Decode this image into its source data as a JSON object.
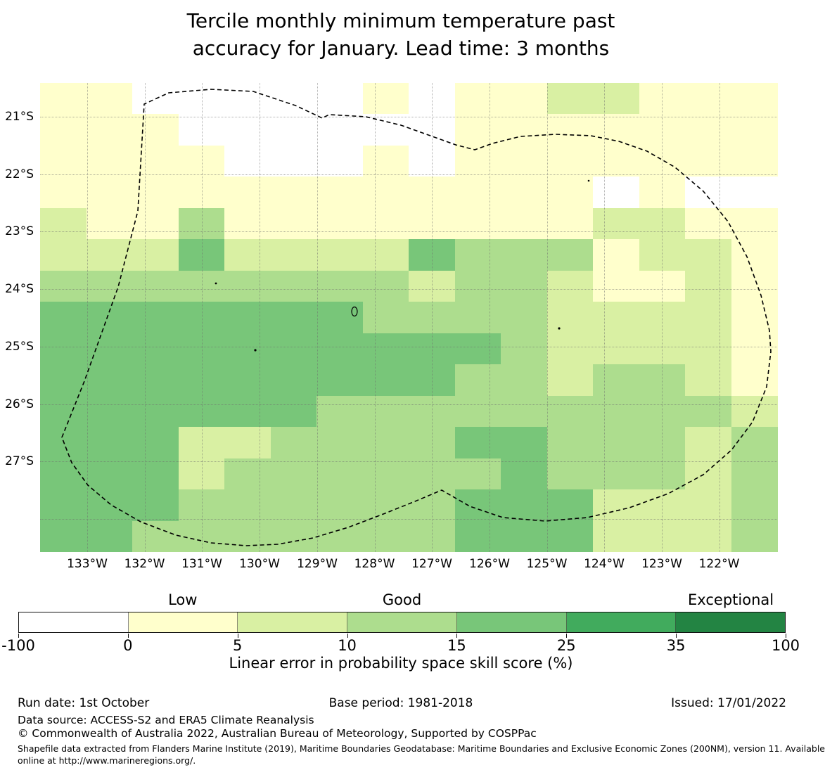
{
  "title": {
    "line1": "Tercile monthly minimum temperature past",
    "line2": "accuracy for January. Lead time: 3 months"
  },
  "chart_data": {
    "type": "heatmap",
    "title": "Tercile monthly minimum temperature past accuracy for January. Lead time: 3 months",
    "x_ticks": [
      "133°W",
      "132°W",
      "131°W",
      "130°W",
      "129°W",
      "128°W",
      "127°W",
      "126°W",
      "125°W",
      "124°W",
      "123°W",
      "122°W"
    ],
    "y_ticks": [
      "21°S",
      "22°S",
      "23°S",
      "24°S",
      "25°S",
      "26°S",
      "27°S"
    ],
    "grid_on": true,
    "legend_position": "bottom",
    "colorbar": {
      "ticks": [
        "-100",
        "0",
        "5",
        "10",
        "15",
        "25",
        "35",
        "100"
      ],
      "colors": [
        "#ffffff",
        "#ffffcc",
        "#d9f0a3",
        "#addd8e",
        "#78c679",
        "#41ab5d",
        "#238443"
      ],
      "categories": [
        {
          "label": "Low",
          "range": "0 to 5"
        },
        {
          "label": "Good",
          "range": "10 to 15"
        },
        {
          "label": "Exceptional",
          "range": "35 to 100"
        }
      ],
      "label": "Linear error in probability space skill score (%)"
    },
    "palette": {
      "W": "#ffffff",
      "Y": "#ffffcc",
      "G1": "#d9f0a3",
      "G2": "#addd8e",
      "G3": "#78c679",
      "G4": "#41ab5d",
      "G5": "#238443"
    },
    "value_bins_pct": {
      "W": "-100 to 0",
      "Y": "0 to 5",
      "G1": "5 to 10",
      "G2": "10 to 15",
      "G3": "15 to 25",
      "G4": "25 to 35",
      "G5": "35 to 100"
    },
    "grid_rows": 15,
    "grid_cols": 16,
    "cells": [
      [
        "Y",
        "Y",
        "W",
        "W",
        "W",
        "W",
        "W",
        "Y",
        "W",
        "Y",
        "Y",
        "G1",
        "G1",
        "Y",
        "Y",
        "Y"
      ],
      [
        "Y",
        "Y",
        "Y",
        "W",
        "W",
        "W",
        "W",
        "W",
        "W",
        "Y",
        "Y",
        "Y",
        "Y",
        "Y",
        "Y",
        "Y"
      ],
      [
        "Y",
        "Y",
        "Y",
        "Y",
        "W",
        "W",
        "W",
        "Y",
        "W",
        "Y",
        "Y",
        "Y",
        "Y",
        "Y",
        "Y",
        "Y"
      ],
      [
        "Y",
        "Y",
        "Y",
        "Y",
        "Y",
        "Y",
        "Y",
        "Y",
        "Y",
        "Y",
        "Y",
        "Y",
        "W",
        "Y",
        "W",
        "W"
      ],
      [
        "G1",
        "Y",
        "Y",
        "G2",
        "Y",
        "Y",
        "Y",
        "Y",
        "Y",
        "Y",
        "Y",
        "Y",
        "G1",
        "G1",
        "Y",
        "Y"
      ],
      [
        "G1",
        "G1",
        "G1",
        "G3",
        "G1",
        "G1",
        "G1",
        "G1",
        "G3",
        "G2",
        "G2",
        "G2",
        "Y",
        "G1",
        "G1",
        "Y"
      ],
      [
        "G2",
        "G2",
        "G2",
        "G2",
        "G2",
        "G2",
        "G2",
        "G2",
        "G1",
        "G2",
        "G2",
        "G1",
        "Y",
        "Y",
        "G1",
        "Y"
      ],
      [
        "G3",
        "G3",
        "G3",
        "G3",
        "G3",
        "G3",
        "G3",
        "G2",
        "G2",
        "G2",
        "G2",
        "G1",
        "G1",
        "G1",
        "G1",
        "Y"
      ],
      [
        "G3",
        "G3",
        "G3",
        "G3",
        "G3",
        "G3",
        "G3",
        "G3",
        "G3",
        "G3",
        "G2",
        "G1",
        "G1",
        "G1",
        "G1",
        "Y"
      ],
      [
        "G3",
        "G3",
        "G3",
        "G3",
        "G3",
        "G3",
        "G3",
        "G3",
        "G3",
        "G2",
        "G2",
        "G1",
        "G2",
        "G2",
        "G1",
        "Y"
      ],
      [
        "G3",
        "G3",
        "G3",
        "G3",
        "G3",
        "G3",
        "G2",
        "G2",
        "G2",
        "G2",
        "G2",
        "G2",
        "G2",
        "G2",
        "G2",
        "G1"
      ],
      [
        "G3",
        "G3",
        "G3",
        "G1",
        "G1",
        "G2",
        "G2",
        "G2",
        "G2",
        "G3",
        "G3",
        "G2",
        "G2",
        "G2",
        "G1",
        "G2"
      ],
      [
        "G3",
        "G3",
        "G3",
        "G1",
        "G2",
        "G2",
        "G2",
        "G2",
        "G2",
        "G2",
        "G3",
        "G2",
        "G2",
        "G2",
        "G1",
        "G2"
      ],
      [
        "G3",
        "G3",
        "G3",
        "G2",
        "G2",
        "G2",
        "G2",
        "G2",
        "G2",
        "G3",
        "G3",
        "G3",
        "G1",
        "G1",
        "G1",
        "G2"
      ],
      [
        "G3",
        "G3",
        "G2",
        "G2",
        "G2",
        "G2",
        "G2",
        "G2",
        "G2",
        "G3",
        "G3",
        "G3",
        "G1",
        "G1",
        "G1",
        "G2"
      ]
    ]
  },
  "legend": {
    "categories": [
      "Low",
      "Good",
      "Exceptional"
    ],
    "ticks": [
      "-100",
      "0",
      "5",
      "10",
      "15",
      "25",
      "35",
      "100"
    ],
    "xlabel": "Linear error in probability space skill score (%)"
  },
  "footer": {
    "run_date": "Run date: 1st October",
    "base_period": "Base period: 1981-2018",
    "issued": "Issued: 17/01/2022",
    "data_source": "Data source: ACCESS-S2 and ERA5 Climate Reanalysis",
    "copyright": "© Commonwealth of Australia 2022, Australian Bureau of Meteorology, Supported by COSPPac",
    "shapefile_line1": "Shapefile data extracted from Flanders Marine Institute (2019), Maritime Boundaries Geodatabase: Maritime Boundaries and Exclusive Economic Zones (200NM), version 11. Available",
    "shapefile_line2": "online at http://www.marineregions.org/."
  }
}
